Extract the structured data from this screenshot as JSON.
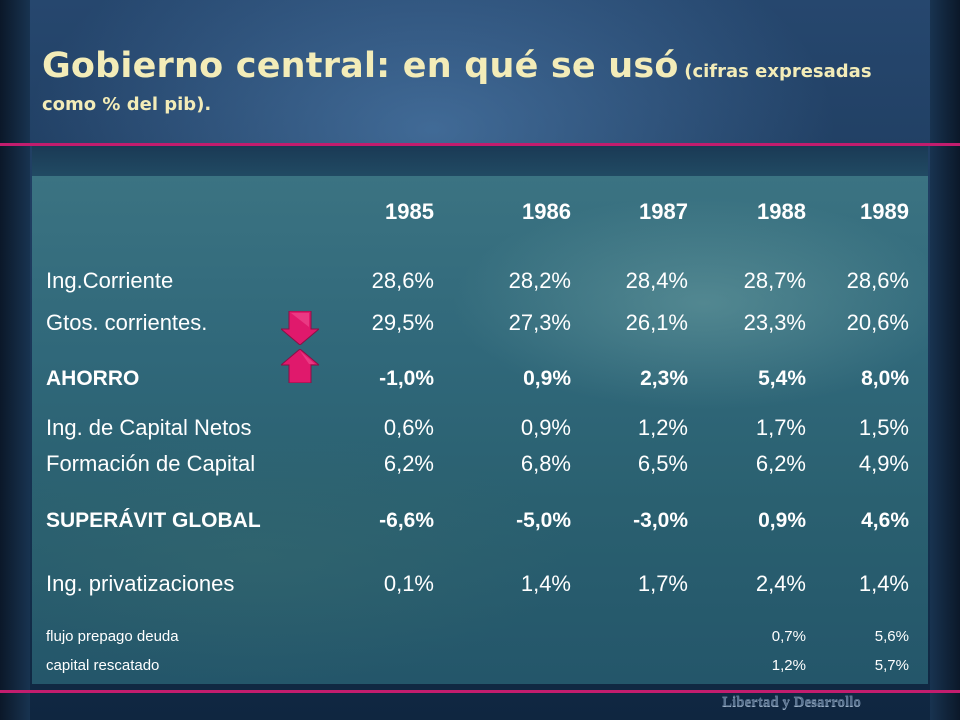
{
  "slide": {
    "title": "Gobierno central: en qué se usó",
    "subtitle_part1": "(cifras expresadas",
    "subtitle_part2": "como % del pib).",
    "footer": "Libertad y Desarrollo",
    "accent_color": "#c21d6e"
  },
  "table": {
    "years": [
      "1985",
      "1986",
      "1987",
      "1988",
      "1989"
    ],
    "rows": [
      {
        "label": "Ing.Corriente",
        "values": [
          "28,6%",
          "28,2%",
          "28,4%",
          "28,7%",
          "28,6%"
        ]
      },
      {
        "label": "Gtos. corrientes.",
        "values": [
          "29,5%",
          "27,3%",
          "26,1%",
          "23,3%",
          "20,6%"
        ]
      },
      {
        "label": "AHORRO",
        "values": [
          "-1,0%",
          "0,9%",
          "2,3%",
          "5,4%",
          "8,0%"
        ]
      },
      {
        "label": "Ing. de Capital Netos",
        "values": [
          "0,6%",
          "0,9%",
          "1,2%",
          "1,7%",
          "1,5%"
        ]
      },
      {
        "label": "Formación de Capital",
        "values": [
          "6,2%",
          "6,8%",
          "6,5%",
          "6,2%",
          "4,9%"
        ]
      },
      {
        "label": "SUPERÁVIT GLOBAL",
        "values": [
          "-6,6%",
          "-5,0%",
          "-3,0%",
          "0,9%",
          "4,6%"
        ]
      },
      {
        "label": "Ing. privatizaciones",
        "values": [
          "0,1%",
          "1,4%",
          "1,7%",
          "2,4%",
          "1,4%"
        ]
      },
      {
        "label": "flujo prepago deuda",
        "values": [
          "",
          "",
          "",
          "0,7%",
          "5,6%"
        ]
      },
      {
        "label": "capital rescatado",
        "values": [
          "",
          "",
          "",
          "1,2%",
          "5,7%"
        ]
      }
    ]
  },
  "icons": {
    "down_arrow": "arrow-down-icon",
    "up_arrow": "arrow-up-icon",
    "arrow_color": "#e0196c"
  }
}
